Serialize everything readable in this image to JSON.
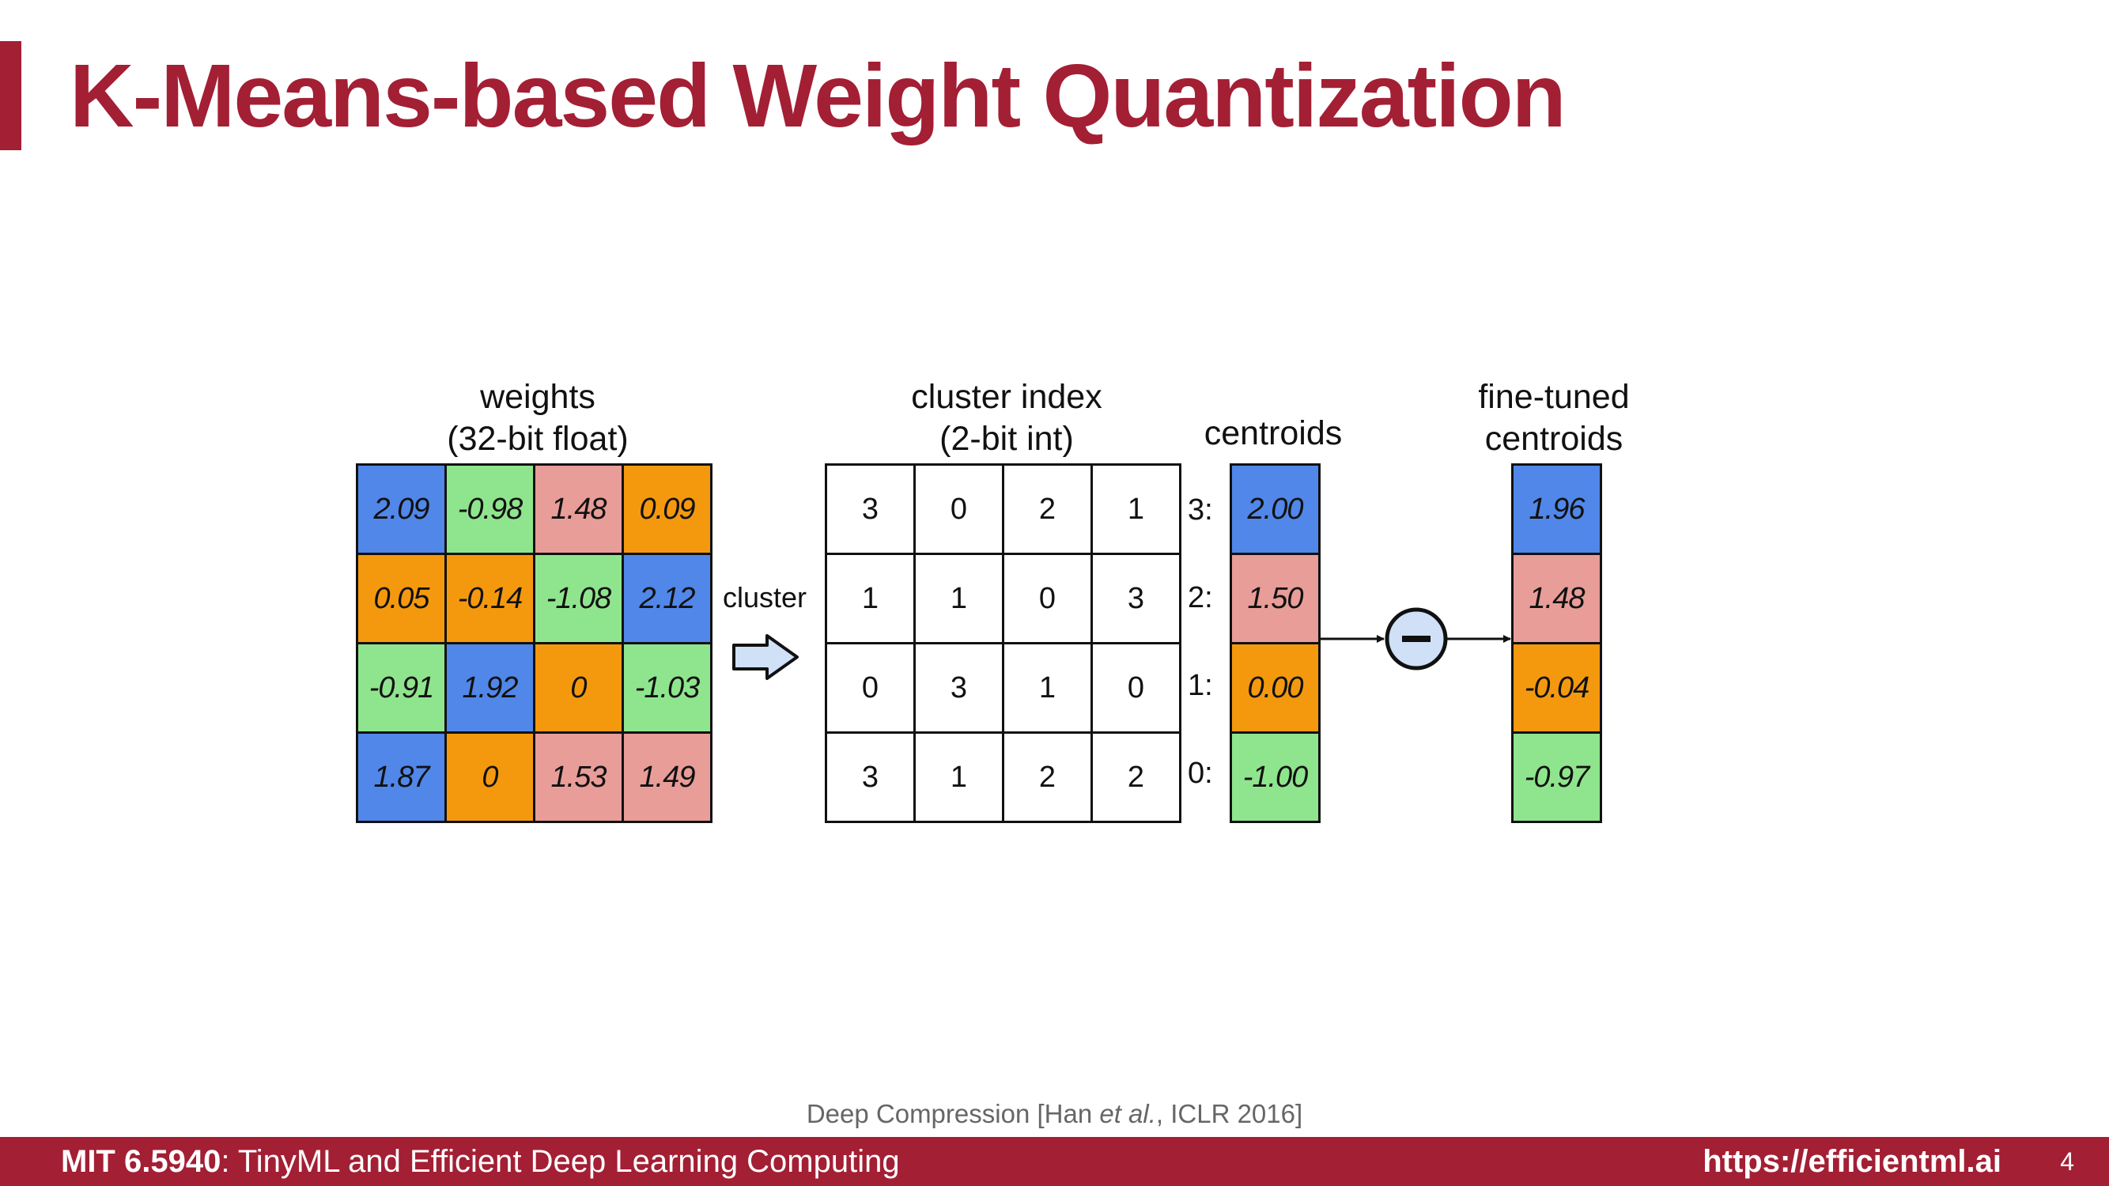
{
  "slide": {
    "title": "K-Means-based Weight Quantization",
    "page_number": "4"
  },
  "weights": {
    "label_line1": "weights",
    "label_line2": "(32-bit float)",
    "rows": [
      [
        "2.09",
        "-0.98",
        "1.48",
        "0.09"
      ],
      [
        "0.05",
        "-0.14",
        "-1.08",
        "2.12"
      ],
      [
        "-0.91",
        "1.92",
        "0",
        "-1.03"
      ],
      [
        "1.87",
        "0",
        "1.53",
        "1.49"
      ]
    ]
  },
  "cluster_arrow_label": "cluster",
  "cluster_index": {
    "label_line1": "cluster index",
    "label_line2": "(2-bit int)",
    "rows": [
      [
        "3",
        "0",
        "2",
        "1"
      ],
      [
        "1",
        "1",
        "0",
        "3"
      ],
      [
        "0",
        "3",
        "1",
        "0"
      ],
      [
        "3",
        "1",
        "2",
        "2"
      ]
    ]
  },
  "centroids": {
    "label": "centroids",
    "row_labels": [
      "3:",
      "2:",
      "1:",
      "0:"
    ],
    "values": [
      "2.00",
      "1.50",
      "0.00",
      "-1.00"
    ]
  },
  "fine_tuned": {
    "label_line1": "fine-tuned",
    "label_line2": "centroids",
    "values": [
      "1.96",
      "1.48",
      "-0.04",
      "-0.97"
    ]
  },
  "colors": {
    "brand": "#a31f34",
    "cluster_3": "#5087e8",
    "cluster_2": "#e89d98",
    "cluster_1": "#f4990e",
    "cluster_0": "#8fe58d"
  },
  "citation": {
    "prefix": "Deep Compression [Han ",
    "italic": "et al.",
    "suffix": ", ICLR 2016]"
  },
  "footer": {
    "course_code": "MIT 6.5940",
    "course_title": ": TinyML and Efficient Deep Learning Computing",
    "url": "https://efficientml.ai"
  }
}
